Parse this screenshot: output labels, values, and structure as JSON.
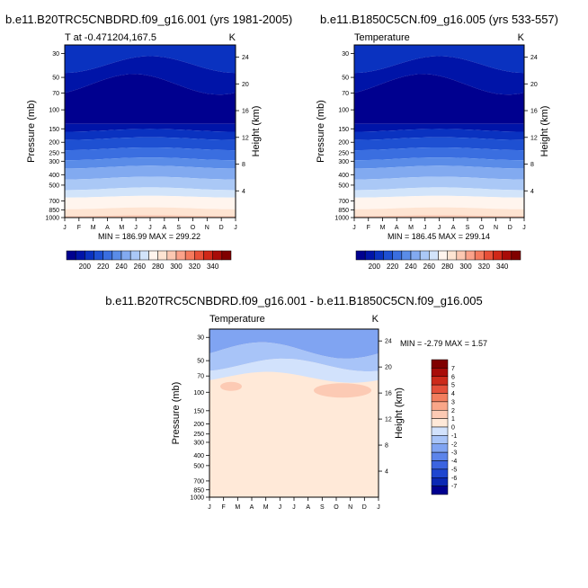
{
  "colors": {
    "abs_levels": [
      "#00008f",
      "#0014a8",
      "#0a32c0",
      "#1e50d2",
      "#3a6ee0",
      "#5a8ce8",
      "#82aaf0",
      "#aac8f6",
      "#d2e4fa",
      "#fff5ee",
      "#fee4d2",
      "#fcc8b2",
      "#fba28a",
      "#f57a5e",
      "#e85038",
      "#d02818",
      "#a80c08",
      "#800000"
    ],
    "diff_levels": [
      "#00008f",
      "#0a28b4",
      "#1e46d0",
      "#3c64e0",
      "#5c84ea",
      "#80a4f2",
      "#a8c4f8",
      "#d2e2fc",
      "#ffe9d8",
      "#fccab4",
      "#f9a688",
      "#f27e5e",
      "#e4503a",
      "#cc2a1a",
      "#a80c08",
      "#800000"
    ]
  },
  "charts": [
    {
      "title": "b.e11.B20TRC5CNBDRD.f09_g16.001 (yrs 1981-2005)",
      "subtitle_left": "T at -0.471204,167.5",
      "subtitle_right": "K",
      "stats": "MIN = 186.99 MAX = 299.22"
    },
    {
      "title": "b.e11.B1850C5CN.f09_g16.005 (yrs 533-557)",
      "subtitle_left": "Temperature",
      "subtitle_right": "K",
      "stats": "MIN = 186.45 MAX = 299.14"
    },
    {
      "title": "b.e11.B20TRC5CNBDRD.f09_g16.001 - b.e11.B1850C5CN.f09_g16.005",
      "subtitle_left": "Temperature",
      "subtitle_right": "K",
      "stats": "MIN =  -2.79 MAX =   1.57"
    }
  ],
  "chart_data": [
    {
      "type": "heatmap",
      "title": "b.e11.B20TRC5CNBDRD.f09_g16.001 (yrs 1981-2005)",
      "subtitle": "T at -0.471204,167.5",
      "units": "K",
      "xlabel": "",
      "ylabel": "Pressure (mb)",
      "ylabel_right": "Height (km)",
      "x_ticks": [
        "J",
        "F",
        "M",
        "A",
        "M",
        "J",
        "J",
        "A",
        "S",
        "O",
        "N",
        "D",
        "J"
      ],
      "y_ticks": [
        30,
        50,
        70,
        100,
        150,
        200,
        250,
        300,
        400,
        500,
        700,
        850,
        1000
      ],
      "y_ticks_right": [
        4,
        8,
        12,
        16,
        20,
        24
      ],
      "y_scale": "log",
      "ylim": [
        1000,
        25
      ],
      "colorbar_labels": [
        200,
        220,
        240,
        260,
        280,
        300,
        320,
        340
      ],
      "min": 186.99,
      "max": 299.22
    },
    {
      "type": "heatmap",
      "title": "b.e11.B1850C5CN.f09_g16.005 (yrs 533-557)",
      "subtitle": "Temperature",
      "units": "K",
      "xlabel": "",
      "ylabel": "Pressure (mb)",
      "ylabel_right": "Height (km)",
      "x_ticks": [
        "J",
        "F",
        "M",
        "A",
        "M",
        "J",
        "J",
        "A",
        "S",
        "O",
        "N",
        "D",
        "J"
      ],
      "y_ticks": [
        30,
        50,
        70,
        100,
        150,
        200,
        250,
        300,
        400,
        500,
        700,
        850,
        1000
      ],
      "y_ticks_right": [
        4,
        8,
        12,
        16,
        20,
        24
      ],
      "y_scale": "log",
      "ylim": [
        1000,
        25
      ],
      "colorbar_labels": [
        200,
        220,
        240,
        260,
        280,
        300,
        320,
        340
      ],
      "min": 186.45,
      "max": 299.14
    },
    {
      "type": "heatmap",
      "title": "b.e11.B20TRC5CNBDRD.f09_g16.001 - b.e11.B1850C5CN.f09_g16.005",
      "subtitle": "Temperature",
      "units": "K",
      "xlabel": "",
      "ylabel": "Pressure (mb)",
      "ylabel_right": "Height (km)",
      "x_ticks": [
        "J",
        "F",
        "M",
        "A",
        "M",
        "J",
        "J",
        "A",
        "S",
        "O",
        "N",
        "D",
        "J"
      ],
      "y_ticks": [
        30,
        50,
        70,
        100,
        150,
        200,
        250,
        300,
        400,
        500,
        700,
        850,
        1000
      ],
      "y_ticks_right": [
        4,
        8,
        12,
        16,
        20,
        24
      ],
      "y_scale": "log",
      "ylim": [
        1000,
        25
      ],
      "colorbar_labels": [
        7,
        6,
        5,
        4,
        3,
        2,
        1,
        0,
        -1,
        -2,
        -3,
        -4,
        -5,
        -6,
        -7
      ],
      "colorbar_orientation": "vertical",
      "min": -2.79,
      "max": 1.57
    }
  ]
}
